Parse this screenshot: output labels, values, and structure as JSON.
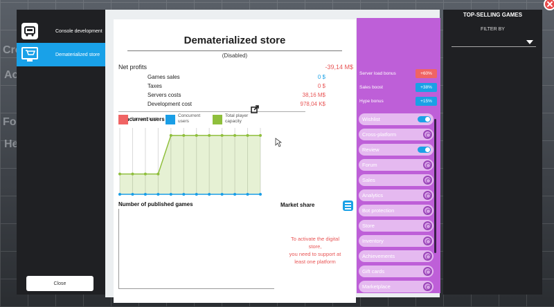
{
  "left_tabs": [
    {
      "label": "Console development",
      "icon": "console-icon"
    },
    {
      "label": "Dematerialized store",
      "icon": "store-cart-icon"
    }
  ],
  "close_button": "Close",
  "store": {
    "title": "Dematerialized store",
    "status": "(Disabled)",
    "net_profits_label": "Net profits",
    "net_profits_value": "-39,14 M$",
    "rows": [
      {
        "label": "Games sales",
        "value": "0 $",
        "color": "#1aa1e6"
      },
      {
        "label": "Taxes",
        "value": "0 $",
        "color": "#e85555"
      },
      {
        "label": "Servers costs",
        "value": "38,16 M$",
        "color": "#e85555"
      },
      {
        "label": "Development cost",
        "value": "978,04 K$",
        "color": "#e85555"
      }
    ]
  },
  "concurrent": {
    "title": "Concurrent users",
    "legend": [
      {
        "label": "Servers' load",
        "color": "#f06464"
      },
      {
        "label": "Concurrent users",
        "color": "#1a9ee6"
      },
      {
        "label": "Total player capacity",
        "color": "#8fbf3c"
      }
    ]
  },
  "published_title": "Number of published games",
  "market_title": "Market share",
  "activate_message": [
    "To activate the digital",
    "store,",
    "you need to support at",
    "least one platform"
  ],
  "bonuses": [
    {
      "label": "Server load bonus",
      "value": "+60%",
      "color": "#f06464"
    },
    {
      "label": "Sales boost",
      "value": "+38%",
      "color": "#1aa1e6"
    },
    {
      "label": "Hype bonus",
      "value": "+15%",
      "color": "#1aa1e6"
    }
  ],
  "features": [
    {
      "label": "Wishlist",
      "control": "toggle"
    },
    {
      "label": "Cross-platform",
      "control": "gear"
    },
    {
      "label": "Review",
      "control": "toggle"
    },
    {
      "label": "Forum",
      "control": "gear"
    },
    {
      "label": "Sales",
      "control": "gear"
    },
    {
      "label": "Analytics",
      "control": "gear"
    },
    {
      "label": "Bot protection",
      "control": "gear"
    },
    {
      "label": "Store",
      "control": "gear"
    },
    {
      "label": "Inventory",
      "control": "gear"
    },
    {
      "label": "Achievements",
      "control": "gear"
    },
    {
      "label": "Gift cards",
      "control": "gear"
    },
    {
      "label": "Marketplace",
      "control": "gear"
    }
  ],
  "right_panel": {
    "title": "TOP-SELLING GAMES",
    "filter_label": "FILTER BY",
    "filter_value": ""
  },
  "chart_data": {
    "type": "line",
    "title": "Concurrent users",
    "x": [
      1,
      2,
      3,
      4,
      5,
      6,
      7,
      8,
      9,
      10,
      11,
      12
    ],
    "series": [
      {
        "name": "Concurrent users",
        "values": [
          0,
          0,
          0,
          0,
          0,
          0,
          0,
          0,
          0,
          0,
          0,
          0
        ]
      },
      {
        "name": "Total player capacity",
        "values": [
          1,
          1,
          1,
          1,
          2.9,
          2.9,
          2.9,
          2.9,
          2.9,
          2.9,
          2.9,
          2.9
        ]
      }
    ],
    "ylim": [
      0,
      3.2
    ],
    "grid": true
  }
}
